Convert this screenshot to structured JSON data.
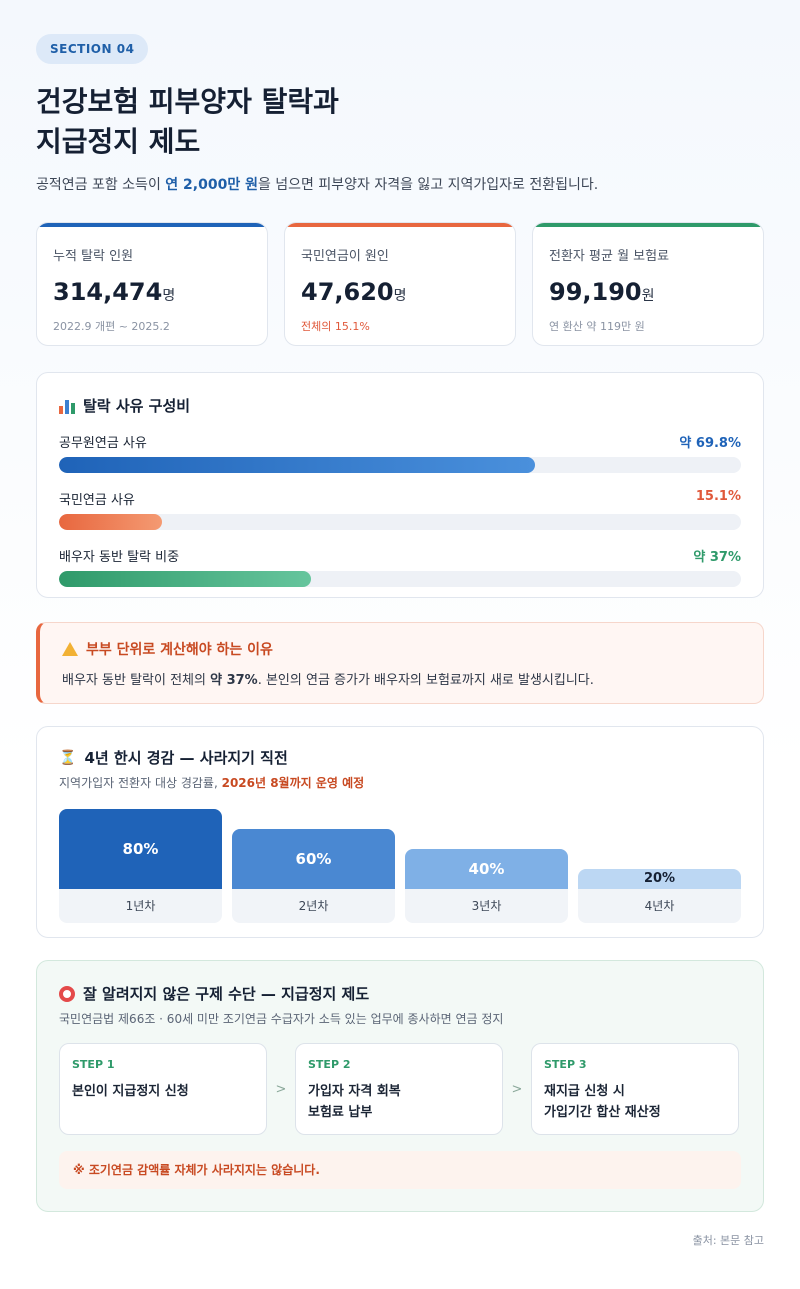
{
  "header": {
    "badge": "SECTION 04",
    "title_line1": "건강보험 피부양자 탈락과",
    "title_line2": "지급정지 제도",
    "subtitle_pre": "공적연금 포함 소득이 ",
    "subtitle_em": "연 2,000만 원",
    "subtitle_post": "을 넘으면 피부양자 자격을 잃고 지역가입자로 전환됩니다."
  },
  "stats": [
    {
      "label": "누적 탈락 인원",
      "value": "314,474",
      "unit": "명",
      "note": "2022.9 개편 ~ 2025.2",
      "accent": "#1f63b8"
    },
    {
      "label": "국민연금이 원인",
      "value": "47,620",
      "unit": "명",
      "note": "전체의 15.1%",
      "accent": "#e8673f"
    },
    {
      "label": "전환자 평균 월 보험료",
      "value": "99,190",
      "unit": "원",
      "note": "연 환산 약 119만 원",
      "accent": "#2f9a6a"
    }
  ],
  "reasons": {
    "title": "탈락 사유 구성비",
    "icon": "bar-chart-icon",
    "items": [
      {
        "label": "공무원연금 사유",
        "pct_label": "약 69.8%",
        "value": 69.8,
        "color": "#1f63b8",
        "color2": "#4a90dc"
      },
      {
        "label": "국민연금 사유",
        "pct_label": "15.1%",
        "value": 15.1,
        "color": "#e8673f",
        "color2": "#f49a72"
      },
      {
        "label": "배우자 동반 탈락 비중",
        "pct_label": "약 37%",
        "value": 37,
        "color": "#2f9a6a",
        "color2": "#66c59d"
      }
    ]
  },
  "warning": {
    "title": "부부 단위로 계산해야 하는 이유",
    "text_pre": "배우자 동반 탈락이 전체의 ",
    "text_em": "약 37%",
    "text_post": ". 본인의 연금 증가가 배우자의 보험료까지 새로 발생시킵니다."
  },
  "discount": {
    "title": "4년 한시 경감 — 사라지기 직전",
    "sub_pre": "지역가입자 전환자 대상 경감률, ",
    "sub_em": "2026년 8월까지 운영 예정",
    "chart_data": {
      "type": "bar",
      "categories": [
        "1년차",
        "2년차",
        "3년차",
        "4년차"
      ],
      "values": [
        80,
        60,
        40,
        20
      ],
      "value_labels": [
        "80%",
        "60%",
        "40%",
        "20%"
      ],
      "colors": [
        "#1f63b8",
        "#4a88d2",
        "#7fb0e6",
        "#bcd7f3"
      ]
    }
  },
  "relief": {
    "title": "잘 알려지지 않은 구제 수단 — 지급정지 제도",
    "sub": "국민연금법 제66조 · 60세 미만 조기연금 수급자가 소득 있는 업무에 종사하면 연금 정지",
    "steps": [
      {
        "no": "STEP 1",
        "text": "본인이 지급정지 신청"
      },
      {
        "no": "STEP 2",
        "text": "가입자 자격 회복\n보험료 납부"
      },
      {
        "no": "STEP 3",
        "text": "재지급 신청 시\n가입기간 합산 재산정"
      }
    ],
    "arrow": ">",
    "note": "※ 조기연금 감액률 자체가 사라지지는 않습니다."
  },
  "source": "출처: 본문 참고"
}
